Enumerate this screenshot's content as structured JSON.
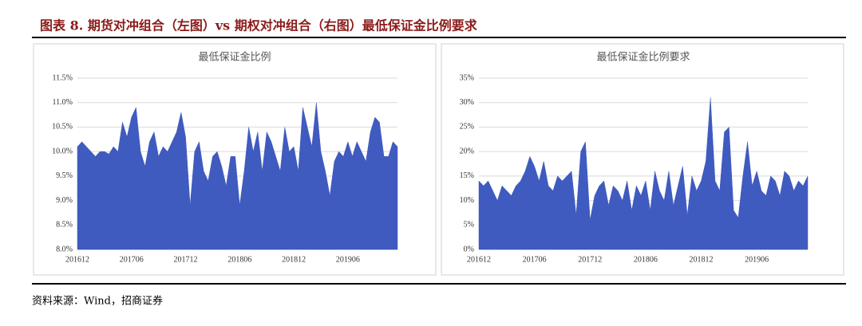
{
  "figure_title": "图表 8. 期货对冲组合（左图）vs 期权对冲组合（右图）最低保证金比例要求",
  "source": "资料来源：Wind，招商证券",
  "chart_data": [
    {
      "type": "area",
      "title": "最低保证金比例",
      "color": "#3f5bbf",
      "grid": true,
      "categories": [
        "201612",
        null,
        null,
        null,
        null,
        null,
        null,
        null,
        null,
        null,
        null,
        null,
        "201706",
        null,
        null,
        null,
        null,
        null,
        null,
        null,
        null,
        null,
        null,
        null,
        "201712",
        null,
        null,
        null,
        null,
        null,
        null,
        null,
        null,
        null,
        null,
        null,
        "201806",
        null,
        null,
        null,
        null,
        null,
        null,
        null,
        null,
        null,
        null,
        null,
        "201812",
        null,
        null,
        null,
        null,
        null,
        null,
        null,
        null,
        null,
        null,
        null,
        "201906",
        null,
        null,
        null,
        null,
        null,
        null,
        null,
        null,
        null,
        null,
        null
      ],
      "values": [
        10.1,
        10.2,
        10.1,
        10.0,
        9.9,
        10.0,
        10.0,
        9.95,
        10.1,
        10.0,
        10.6,
        10.3,
        10.7,
        10.9,
        10.0,
        9.7,
        10.2,
        10.4,
        9.9,
        10.1,
        10.0,
        10.2,
        10.4,
        10.8,
        10.3,
        8.9,
        10.0,
        10.2,
        9.6,
        9.4,
        9.9,
        10.0,
        9.7,
        9.3,
        9.9,
        9.9,
        8.9,
        9.6,
        10.5,
        10.0,
        10.4,
        9.6,
        10.4,
        10.2,
        9.9,
        9.6,
        10.5,
        10.0,
        10.1,
        9.6,
        10.9,
        10.5,
        10.1,
        11.0,
        10.0,
        9.6,
        9.1,
        9.8,
        10.0,
        9.9,
        10.2,
        9.9,
        10.2,
        10.0,
        9.8,
        10.4,
        10.7,
        10.6,
        9.9,
        9.9,
        10.2,
        10.1
      ],
      "ylim": [
        8.0,
        11.5
      ],
      "yticks": [
        {
          "value": 8.0,
          "label": "8.0%"
        },
        {
          "value": 8.5,
          "label": "8.5%"
        },
        {
          "value": 9.0,
          "label": "9.0%"
        },
        {
          "value": 9.5,
          "label": "9.5%"
        },
        {
          "value": 10.0,
          "label": "10.0%"
        },
        {
          "value": 10.5,
          "label": "10.5%"
        },
        {
          "value": 11.0,
          "label": "11.0%"
        },
        {
          "value": 11.5,
          "label": "11.5%"
        }
      ]
    },
    {
      "type": "area",
      "title": "最低保证金比例要求",
      "color": "#3f5bbf",
      "grid": true,
      "categories": [
        "201612",
        null,
        null,
        null,
        null,
        null,
        null,
        null,
        null,
        null,
        null,
        null,
        "201706",
        null,
        null,
        null,
        null,
        null,
        null,
        null,
        null,
        null,
        null,
        null,
        "201712",
        null,
        null,
        null,
        null,
        null,
        null,
        null,
        null,
        null,
        null,
        null,
        "201806",
        null,
        null,
        null,
        null,
        null,
        null,
        null,
        null,
        null,
        null,
        null,
        "201812",
        null,
        null,
        null,
        null,
        null,
        null,
        null,
        null,
        null,
        null,
        null,
        "201906",
        null,
        null,
        null,
        null,
        null,
        null,
        null,
        null,
        null,
        null,
        null
      ],
      "values": [
        14,
        13,
        14,
        12,
        10,
        13,
        12,
        11,
        13,
        14,
        16,
        19,
        17,
        14,
        18,
        13,
        12,
        15,
        14,
        15,
        16,
        7,
        20,
        22,
        6,
        11,
        13,
        14,
        9,
        13,
        12,
        10,
        14,
        8,
        13,
        11,
        14,
        8,
        16,
        12,
        10,
        16,
        9,
        13,
        17,
        7,
        15,
        12,
        14,
        18,
        31,
        14,
        12,
        24,
        25,
        8,
        6.5,
        15,
        22,
        13,
        16,
        12,
        11,
        15,
        14,
        11,
        16,
        15,
        12,
        14,
        13,
        15
      ],
      "ylim": [
        0,
        35
      ],
      "yticks": [
        {
          "value": 0,
          "label": "0%"
        },
        {
          "value": 5,
          "label": "5%"
        },
        {
          "value": 10,
          "label": "10%"
        },
        {
          "value": 15,
          "label": "15%"
        },
        {
          "value": 20,
          "label": "20%"
        },
        {
          "value": 25,
          "label": "25%"
        },
        {
          "value": 30,
          "label": "30%"
        },
        {
          "value": 35,
          "label": "35%"
        }
      ]
    }
  ]
}
